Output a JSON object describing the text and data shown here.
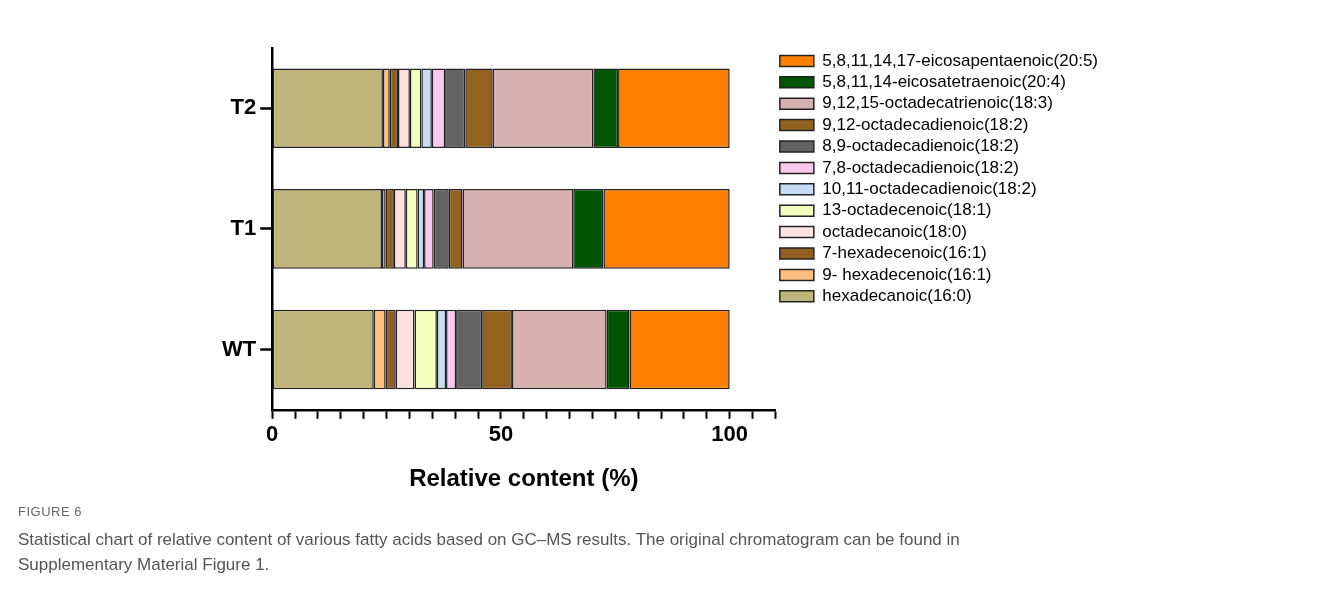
{
  "chart_data": {
    "type": "bar",
    "orientation": "horizontal",
    "stacked": true,
    "categories": [
      "T2",
      "T1",
      "WT"
    ],
    "xlabel": "Relative content (%)",
    "xlim": [
      0,
      110
    ],
    "xticks": [
      0,
      {
        "value": 5,
        "label": null
      },
      {
        "value": 10,
        "label": null
      },
      {
        "value": 15,
        "label": null
      },
      {
        "value": 20,
        "label": null
      },
      {
        "value": 25,
        "label": null
      },
      {
        "value": 30,
        "label": null
      },
      {
        "value": 35,
        "label": null
      },
      {
        "value": 40,
        "label": null
      },
      {
        "value": 45,
        "label": null
      },
      50,
      {
        "value": 55,
        "label": null
      },
      {
        "value": 60,
        "label": null
      },
      {
        "value": 65,
        "label": null
      },
      {
        "value": 70,
        "label": null
      },
      {
        "value": 75,
        "label": null
      },
      {
        "value": 80,
        "label": null
      },
      {
        "value": 85,
        "label": null
      },
      {
        "value": 90,
        "label": null
      },
      {
        "value": 95,
        "label": null
      },
      100,
      {
        "value": 105,
        "label": null
      },
      {
        "value": 110,
        "label": null
      }
    ],
    "legend": "right",
    "grid": false,
    "series": [
      {
        "name": "hexadecanoic(16:0)",
        "color": "#bfb47a",
        "values": [
          24.2,
          24.0,
          22.2
        ]
      },
      {
        "name": "9- hexadecenoic(16:1)",
        "color": "#ffbf80",
        "values": [
          1.5,
          0.8,
          2.6
        ]
      },
      {
        "name": "7-hexadecenoic(16:1)",
        "color": "#935f20",
        "values": [
          1.8,
          1.8,
          2.2
        ]
      },
      {
        "name": "octadecanoic(18:0)",
        "color": "#ffe0e0",
        "values": [
          2.6,
          2.6,
          4.1
        ]
      },
      {
        "name": "13-octadecenoic(18:1)",
        "color": "#f5ffc0",
        "values": [
          2.5,
          2.6,
          4.9
        ]
      },
      {
        "name": "10,11-octadecadienoic(18:2)",
        "color": "#c6ddf5",
        "values": [
          2.3,
          1.4,
          2.0
        ]
      },
      {
        "name": "7,8-octadecadienoic(18:2)",
        "color": "#f8c8ee",
        "values": [
          2.9,
          2.1,
          2.2
        ]
      },
      {
        "name": "8,9-octadecadienoic(18:2)",
        "color": "#636363",
        "values": [
          4.4,
          3.3,
          5.7
        ]
      },
      {
        "name": "9,12-octadecadienoic(18:2)",
        "color": "#936220",
        "values": [
          6.0,
          3.0,
          6.5
        ]
      },
      {
        "name": "9,12,15-octadecatrienoic(18:3)",
        "color": "#d7b0b0",
        "values": [
          22.0,
          24.2,
          20.7
        ]
      },
      {
        "name": "5,8,11,14-eicosatetraenoic(20:4)",
        "color": "#005500",
        "values": [
          5.4,
          6.6,
          5.0
        ]
      },
      {
        "name": "5,8,11,14,17-eicosapentaenoic(20:5)",
        "color": "#ff8000",
        "values": [
          24.4,
          27.6,
          21.9
        ]
      }
    ],
    "annotations": [
      "FIGURE 6",
      "Statistical chart of relative content of various fatty acids based on GC–MS results. The original chromatogram can be found in Supplementary Material Figure 1."
    ]
  }
}
